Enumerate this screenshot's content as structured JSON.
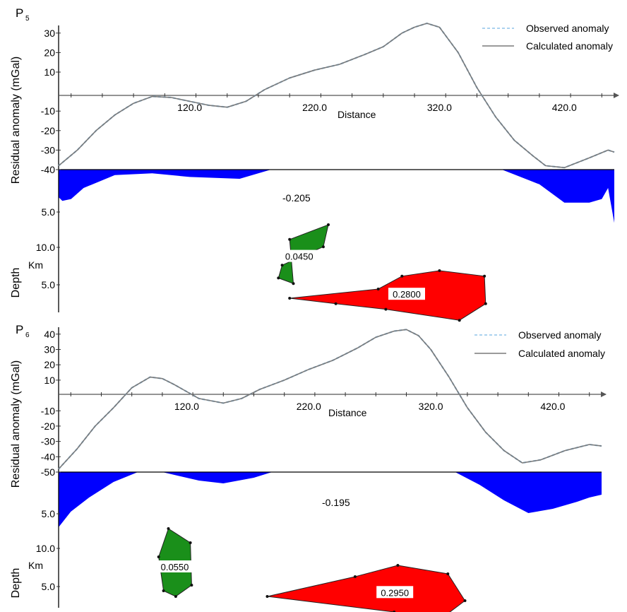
{
  "chart_data": [
    {
      "type": "line",
      "panel_label": "P",
      "panel_index": "5",
      "xlabel": "Distance",
      "ylabel": "Residual anomaly (mGal)",
      "depth_label": "Depth",
      "depth_unit": "Km",
      "xlim": [
        15,
        460
      ],
      "ylim": [
        -40,
        35
      ],
      "x_ticks": [
        120.0,
        220.0,
        320.0,
        420.0
      ],
      "x_tick_labels": [
        "120.0",
        "220.0",
        "320.0",
        "420.0"
      ],
      "y_ticks": [
        30,
        20,
        10,
        -10,
        -20,
        -30,
        -40
      ],
      "y_tick_labels": [
        "30",
        "20",
        "10",
        "-10",
        "-20",
        "-30",
        "-40"
      ],
      "depth_tick_labels": [
        "5.0",
        "10.0",
        "5.0"
      ],
      "legend": {
        "placement": "top-right",
        "entries": [
          {
            "label": "Observed anomaly",
            "style": "dashed",
            "color": "#8fc3ea"
          },
          {
            "label": "Calculated anomaly",
            "style": "solid",
            "color": "#7a7a7a"
          }
        ]
      },
      "series": [
        {
          "name": "Observed anomaly",
          "x": [
            15,
            30,
            45,
            60,
            75,
            90,
            105,
            120,
            135,
            150,
            165,
            180,
            200,
            220,
            240,
            260,
            275,
            290,
            300,
            310,
            320,
            335,
            350,
            365,
            380,
            395,
            405,
            420,
            440,
            455,
            460
          ],
          "y": [
            -38,
            -30,
            -20,
            -12,
            -6,
            -2.5,
            -3,
            -5,
            -7,
            -8,
            -5,
            1,
            7,
            11,
            14,
            19,
            23,
            30,
            33,
            35,
            33,
            20,
            2,
            -13,
            -25,
            -33,
            -38,
            -39,
            -34,
            -30,
            -31
          ]
        },
        {
          "name": "Calculated anomaly",
          "x": [
            15,
            30,
            45,
            60,
            75,
            90,
            105,
            120,
            135,
            150,
            165,
            180,
            200,
            220,
            240,
            260,
            275,
            290,
            300,
            310,
            320,
            335,
            350,
            365,
            380,
            395,
            405,
            420,
            440,
            455,
            460
          ],
          "y": [
            -38,
            -30,
            -20,
            -12,
            -6,
            -2.5,
            -3,
            -5,
            -7,
            -8,
            -5,
            1,
            7,
            11,
            14,
            19,
            23,
            30,
            33,
            35,
            33,
            20,
            2,
            -13,
            -25,
            -33,
            -38,
            -39,
            -34,
            -30,
            -31
          ]
        }
      ],
      "basement": {
        "color": "#0000ff",
        "density_label": "-0.205",
        "profile_x": [
          15,
          18,
          25,
          35,
          60,
          90,
          120,
          160,
          185,
          200,
          370,
          400,
          420,
          440,
          450,
          455,
          460
        ],
        "profile_depth": [
          1.5,
          1.7,
          1.6,
          1.0,
          0.3,
          0.2,
          0.4,
          0.5,
          0.0,
          0.0,
          0.0,
          0.8,
          1.8,
          1.8,
          1.6,
          1.0,
          2.9
        ]
      },
      "bodies": [
        {
          "label": "0.0450",
          "color": "#1a8f1a",
          "x": [
            200,
            231,
            227,
            194,
            191,
            203
          ],
          "depth": [
            3.8,
            3.0,
            4.2,
            5.2,
            5.9,
            6.2
          ]
        },
        {
          "label": "0.2800",
          "color": "#ff0000",
          "x": [
            200,
            271,
            290,
            320,
            356,
            357,
            336,
            277,
            237
          ],
          "depth": [
            7.0,
            6.5,
            5.8,
            5.5,
            5.8,
            7.3,
            8.2,
            7.6,
            7.3
          ]
        }
      ]
    },
    {
      "type": "line",
      "panel_label": "P",
      "panel_index": "6",
      "xlabel": "Distance",
      "ylabel": "Residual anomaly (mGal)",
      "depth_label": "Depth",
      "depth_unit": "Km",
      "xlim": [
        15,
        460
      ],
      "ylim": [
        -50,
        45
      ],
      "x_ticks": [
        120.0,
        220.0,
        320.0,
        420.0
      ],
      "x_tick_labels": [
        "120.0",
        "220.0",
        "320.0",
        "420.0"
      ],
      "y_ticks": [
        40,
        30,
        20,
        10,
        -10,
        -20,
        -30,
        -40,
        -50
      ],
      "y_tick_labels": [
        "40",
        "30",
        "20",
        "10",
        "-10",
        "-20",
        "-30",
        "-40",
        "-50"
      ],
      "depth_tick_labels": [
        "5.0",
        "10.0",
        "5.0"
      ],
      "legend": {
        "placement": "top-right",
        "entries": [
          {
            "label": "Observed anomaly",
            "style": "dashed",
            "color": "#8fc3ea"
          },
          {
            "label": "Calculated anomaly",
            "style": "solid",
            "color": "#7a7a7a"
          }
        ]
      },
      "series": [
        {
          "name": "Observed anomaly",
          "x": [
            15,
            30,
            45,
            60,
            75,
            90,
            100,
            110,
            130,
            150,
            165,
            180,
            200,
            220,
            240,
            260,
            275,
            290,
            300,
            310,
            320,
            335,
            350,
            365,
            380,
            395,
            410,
            430,
            450,
            460
          ],
          "y": [
            -48,
            -35,
            -20,
            -8,
            5,
            12,
            11,
            7,
            -2,
            -5,
            -2,
            4,
            10,
            17,
            23,
            31,
            38,
            42,
            43,
            39,
            30,
            12,
            -8,
            -24,
            -36,
            -44,
            -42,
            -36,
            -32,
            -33
          ]
        },
        {
          "name": "Calculated anomaly",
          "x": [
            15,
            30,
            45,
            60,
            75,
            90,
            100,
            110,
            130,
            150,
            165,
            180,
            200,
            220,
            240,
            260,
            275,
            290,
            300,
            310,
            320,
            335,
            350,
            365,
            380,
            395,
            410,
            430,
            450,
            460
          ],
          "y": [
            -48,
            -35,
            -20,
            -8,
            5,
            12,
            11,
            7,
            -2,
            -5,
            -2,
            4,
            10,
            17,
            23,
            31,
            38,
            42,
            43,
            39,
            30,
            12,
            -8,
            -24,
            -36,
            -44,
            -42,
            -36,
            -32,
            -33
          ]
        }
      ],
      "basement": {
        "color": "#0000ff",
        "density_label": "-0.195",
        "profile_x": [
          15,
          25,
          40,
          60,
          80,
          100,
          130,
          150,
          175,
          190,
          340,
          360,
          380,
          400,
          420,
          440,
          450,
          460
        ],
        "profile_depth": [
          3.9,
          2.8,
          1.8,
          0.7,
          0.0,
          0.0,
          0.6,
          0.8,
          0.4,
          0.0,
          0.0,
          0.9,
          2.0,
          2.9,
          2.6,
          2.1,
          1.8,
          1.6
        ]
      },
      "bodies": [
        {
          "label": "0.0550",
          "color": "#1a8f1a",
          "x": [
            105,
            123,
            124,
            111,
            101,
            97
          ],
          "depth": [
            4.0,
            5.0,
            8.0,
            8.8,
            8.4,
            6.0
          ]
        },
        {
          "label": "0.2950",
          "color": "#ff0000",
          "x": [
            186,
            258,
            293,
            334,
            348,
            325,
            290
          ],
          "depth": [
            8.8,
            7.4,
            6.6,
            7.2,
            9.1,
            10.6,
            9.9
          ]
        }
      ]
    }
  ]
}
